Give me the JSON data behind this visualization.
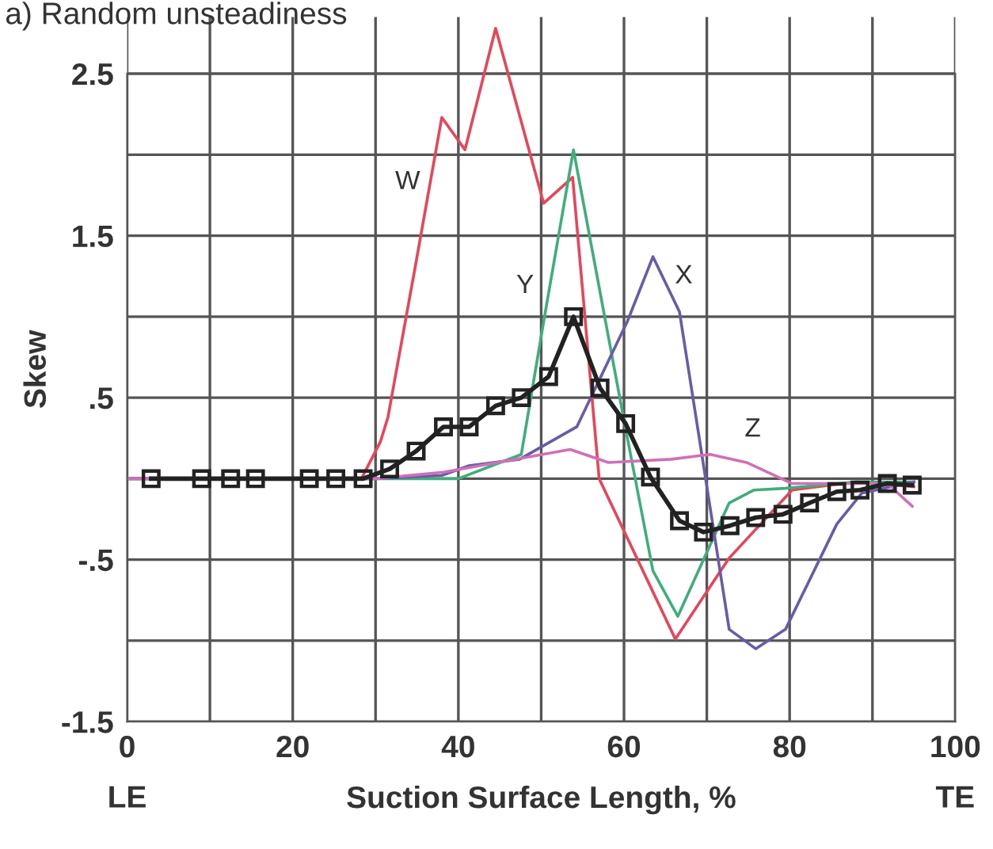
{
  "chart_data": {
    "type": "line",
    "title": "a) Random unsteadiness",
    "xlabel": "Suction Surface Length, %",
    "ylabel": "Skew",
    "xlim": [
      0,
      100
    ],
    "xticks": [
      0,
      {
        "value": 10,
        "label": null
      },
      20,
      {
        "value": 30,
        "label": null
      },
      40,
      {
        "value": 50,
        "label": null
      },
      60,
      {
        "value": 70,
        "label": null
      },
      80,
      {
        "value": 90,
        "label": null
      },
      100
    ],
    "ylim": [
      -1.5,
      2.85
    ],
    "yticks": [
      {
        "value": -1.5,
        "label": "-1.5"
      },
      {
        "value": -1,
        "label": null
      },
      {
        "value": -0.5,
        "label": "-.5"
      },
      {
        "value": 0,
        "label": null
      },
      {
        "value": 0.5,
        "label": ".5"
      },
      {
        "value": 1,
        "label": null
      },
      {
        "value": 1.5,
        "label": "1.5"
      },
      {
        "value": 2,
        "label": null
      },
      {
        "value": 2.5,
        "label": "2.5"
      }
    ],
    "grid": true,
    "series": [
      {
        "name": "W",
        "color": "#e8455a",
        "marker": "none",
        "x": [
          0,
          28.3,
          30.6,
          31.5,
          34.8,
          38.0,
          40.8,
          44.5,
          50.3,
          53.8,
          57.0,
          66.2,
          72.7,
          80.3,
          88.0,
          95.0
        ],
        "values": [
          0,
          0,
          0.23,
          0.38,
          1.31,
          2.23,
          2.03,
          2.78,
          1.7,
          1.86,
          0.0,
          -0.99,
          -0.49,
          -0.07,
          -0.02,
          -0.05
        ]
      },
      {
        "name": "Y",
        "color": "#3fae7a",
        "marker": "none",
        "x": [
          0,
          30,
          40,
          47.6,
          50.3,
          53.9,
          60.0,
          63.5,
          66.5,
          72.7,
          75.7,
          79.4,
          88,
          95
        ],
        "values": [
          0,
          0,
          0,
          0.15,
          0.97,
          2.03,
          0.36,
          -0.57,
          -0.85,
          -0.15,
          -0.07,
          -0.06,
          -0.02,
          -0.02
        ]
      },
      {
        "name": "X",
        "color": "#6a5aa8",
        "marker": "none",
        "x": [
          0,
          30,
          38,
          41.3,
          47.4,
          54.3,
          60.4,
          63.5,
          66.7,
          72.7,
          75.9,
          79.5,
          85.7,
          88.7,
          95
        ],
        "values": [
          0,
          0,
          0.02,
          0.08,
          0.12,
          0.32,
          0.97,
          1.37,
          1.03,
          -0.93,
          -1.05,
          -0.93,
          -0.28,
          -0.09,
          -0.02
        ]
      },
      {
        "name": "Z",
        "color": "#d070b8",
        "marker": "none",
        "x": [
          0,
          30,
          38.2,
          53.5,
          58.1,
          65.7,
          70.4,
          74.8,
          80.3,
          91.8,
          94.8
        ],
        "values": [
          0,
          0,
          0.04,
          0.18,
          0.1,
          0.12,
          0.15,
          0.1,
          -0.03,
          -0.03,
          -0.17
        ]
      },
      {
        "color": "#222222",
        "marker": "square",
        "x": [
          2.9,
          9.0,
          12.5,
          15.5,
          22.0,
          25.2,
          28.5,
          31.7,
          34.9,
          38.2,
          41.3,
          44.5,
          47.6,
          50.9,
          53.9,
          57.1,
          60.2,
          63.2,
          66.7,
          69.6,
          72.8,
          75.9,
          79.2,
          82.4,
          85.7,
          88.5,
          91.8,
          94.8
        ],
        "values": [
          0,
          0,
          0,
          0,
          0,
          0,
          0,
          0.06,
          0.17,
          0.32,
          0.32,
          0.45,
          0.5,
          0.63,
          1.0,
          0.56,
          0.34,
          0.01,
          -0.26,
          -0.33,
          -0.29,
          -0.24,
          -0.22,
          -0.15,
          -0.08,
          -0.07,
          -0.03,
          -0.04
        ]
      }
    ],
    "annotations": [
      "LE",
      "TE"
    ]
  }
}
